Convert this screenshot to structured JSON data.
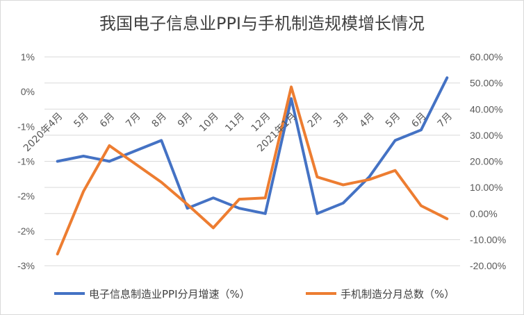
{
  "chart_data": {
    "type": "line",
    "title": "我国电子信息业PPI与手机制造规模增长情况",
    "categories": [
      "2020年4月",
      "5月",
      "6月",
      "7月",
      "8月",
      "9月",
      "10月",
      "11月",
      "12月",
      "2021年1月",
      "2月",
      "3月",
      "4月",
      "5月",
      "6月",
      "7月"
    ],
    "y_left_ticks": [
      "1%",
      "0%",
      "-1%",
      "-1%",
      "-2%",
      "-2%",
      "-3%"
    ],
    "y_left_range": [
      -3.0,
      1.0
    ],
    "y_right_ticks": [
      "60.00%",
      "50.00%",
      "40.00%",
      "30.00%",
      "20.00%",
      "10.00%",
      "0.00%",
      "-10.00%",
      "-20.00%"
    ],
    "y_right_range": [
      -20,
      60
    ],
    "gridlines": true,
    "legend_position": "bottom",
    "series": [
      {
        "name": "电子信息制造业PPI分月增速（%）",
        "axis": "left",
        "color": "#4472C4",
        "values": [
          -1.0,
          -0.9,
          -1.0,
          -0.8,
          -0.6,
          -1.9,
          -1.7,
          -1.9,
          -2.0,
          0.2,
          -2.0,
          -1.8,
          -1.3,
          -0.6,
          -0.4,
          0.6
        ]
      },
      {
        "name": "手机制造分月总数（%）",
        "axis": "right",
        "color": "#ED7D31",
        "values": [
          -15.5,
          8.5,
          26.0,
          19.0,
          12.0,
          3.5,
          -5.5,
          5.5,
          6.0,
          48.5,
          14.0,
          11.0,
          13.0,
          16.5,
          3.0,
          -2.0
        ]
      }
    ]
  }
}
